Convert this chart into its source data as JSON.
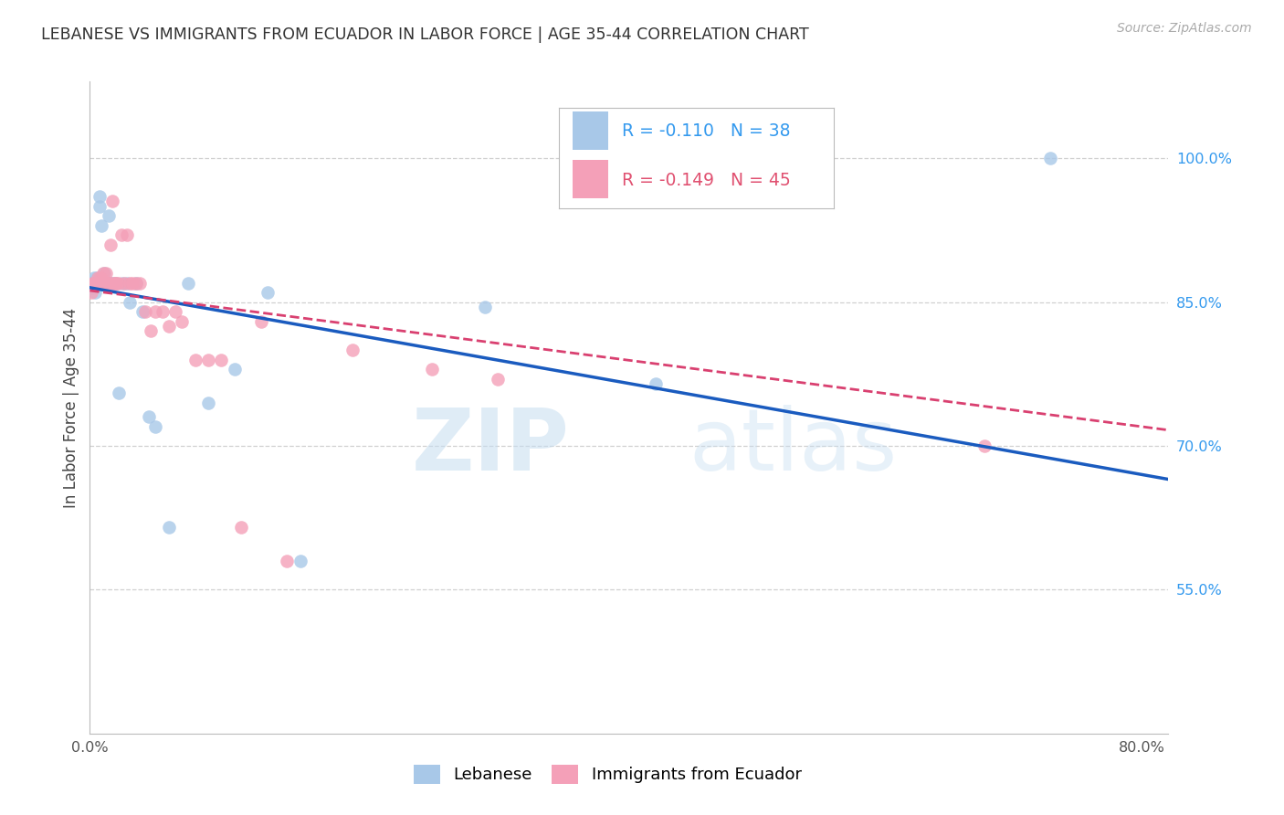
{
  "title": "LEBANESE VS IMMIGRANTS FROM ECUADOR IN LABOR FORCE | AGE 35-44 CORRELATION CHART",
  "source": "Source: ZipAtlas.com",
  "ylabel": "In Labor Force | Age 35-44",
  "xlim": [
    0.0,
    0.82
  ],
  "ylim": [
    0.4,
    1.08
  ],
  "yticks": [
    0.55,
    0.7,
    0.85,
    1.0
  ],
  "ytick_labels": [
    "55.0%",
    "70.0%",
    "85.0%",
    "100.0%"
  ],
  "xtick_positions": [
    0.0,
    0.8
  ],
  "xtick_labels": [
    "0.0%",
    "80.0%"
  ],
  "blue_color": "#a8c8e8",
  "pink_color": "#f4a0b8",
  "blue_line_color": "#1a5bbf",
  "pink_line_color": "#d94070",
  "R_blue": -0.11,
  "N_blue": 38,
  "R_pink": -0.149,
  "N_pink": 45,
  "blue_x": [
    0.001,
    0.002,
    0.003,
    0.003,
    0.004,
    0.004,
    0.005,
    0.006,
    0.007,
    0.007,
    0.008,
    0.009,
    0.01,
    0.011,
    0.012,
    0.013,
    0.014,
    0.015,
    0.016,
    0.018,
    0.02,
    0.022,
    0.025,
    0.028,
    0.03,
    0.035,
    0.04,
    0.045,
    0.05,
    0.06,
    0.075,
    0.09,
    0.11,
    0.135,
    0.16,
    0.3,
    0.43,
    0.73
  ],
  "blue_y": [
    0.87,
    0.865,
    0.875,
    0.87,
    0.87,
    0.86,
    0.875,
    0.87,
    0.96,
    0.95,
    0.87,
    0.93,
    0.87,
    0.88,
    0.87,
    0.87,
    0.94,
    0.87,
    0.87,
    0.87,
    0.87,
    0.755,
    0.87,
    0.87,
    0.85,
    0.87,
    0.84,
    0.73,
    0.72,
    0.615,
    0.87,
    0.745,
    0.78,
    0.86,
    0.58,
    0.845,
    0.765,
    1.0
  ],
  "pink_x": [
    0.001,
    0.002,
    0.003,
    0.004,
    0.005,
    0.006,
    0.007,
    0.008,
    0.009,
    0.01,
    0.011,
    0.012,
    0.013,
    0.014,
    0.015,
    0.016,
    0.017,
    0.018,
    0.019,
    0.02,
    0.022,
    0.024,
    0.026,
    0.028,
    0.03,
    0.032,
    0.035,
    0.038,
    0.042,
    0.046,
    0.05,
    0.055,
    0.06,
    0.065,
    0.07,
    0.08,
    0.09,
    0.1,
    0.115,
    0.13,
    0.15,
    0.2,
    0.26,
    0.31,
    0.68
  ],
  "pink_y": [
    0.86,
    0.87,
    0.87,
    0.87,
    0.87,
    0.875,
    0.87,
    0.875,
    0.87,
    0.88,
    0.87,
    0.88,
    0.87,
    0.87,
    0.87,
    0.91,
    0.955,
    0.87,
    0.87,
    0.87,
    0.87,
    0.92,
    0.87,
    0.92,
    0.87,
    0.87,
    0.87,
    0.87,
    0.84,
    0.82,
    0.84,
    0.84,
    0.825,
    0.84,
    0.83,
    0.79,
    0.79,
    0.79,
    0.615,
    0.83,
    0.58,
    0.8,
    0.78,
    0.77,
    0.7
  ],
  "watermark_zip": "ZIP",
  "watermark_atlas": "atlas",
  "background_color": "#ffffff",
  "grid_color": "#d0d0d0"
}
